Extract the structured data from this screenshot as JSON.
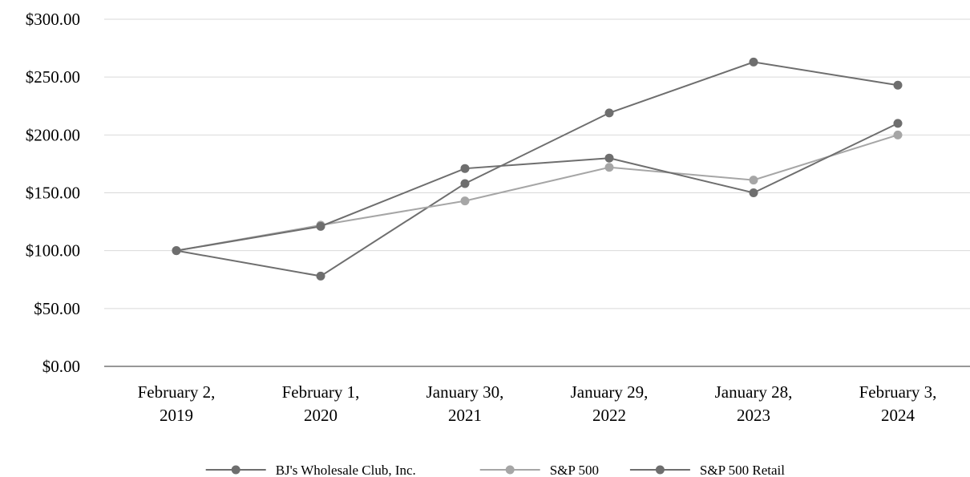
{
  "chart_data": {
    "type": "line",
    "title": "",
    "xlabel": "",
    "ylabel": "",
    "ylim": [
      0,
      300
    ],
    "yticks": [
      "$0.00",
      "$50.00",
      "$100.00",
      "$150.00",
      "$200.00",
      "$250.00",
      "$300.00"
    ],
    "categories": [
      [
        "February 2,",
        "2019"
      ],
      [
        "February 1,",
        "2020"
      ],
      [
        "January 30,",
        "2021"
      ],
      [
        "January 29,",
        "2022"
      ],
      [
        "January 28,",
        "2023"
      ],
      [
        "February 3,",
        "2024"
      ]
    ],
    "grid": true,
    "legend_position": "bottom",
    "series": [
      {
        "name": "BJ's Wholesale Club, Inc.",
        "color": "#6e6e6e",
        "values": [
          100,
          78,
          158,
          219,
          263,
          243
        ]
      },
      {
        "name": "S&P 500",
        "color": "#a6a6a6",
        "values": [
          100,
          122,
          143,
          172,
          161,
          200
        ]
      },
      {
        "name": "S&P 500 Retail",
        "color": "#6e6e6e",
        "values": [
          100,
          121,
          171,
          180,
          150,
          210
        ]
      }
    ]
  }
}
